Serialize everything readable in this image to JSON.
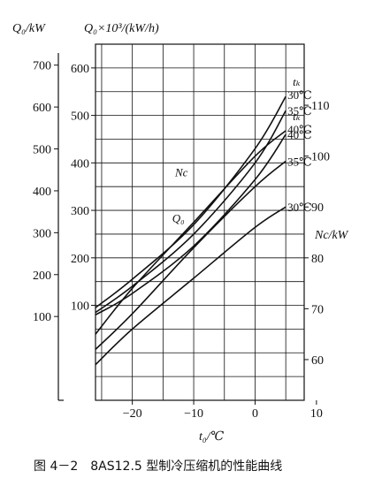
{
  "chart_data": {
    "type": "line",
    "caption": "图 4－2　8AS12.5 型制冷压缩机的性能曲线",
    "x_axis": {
      "label": "t₀/℃",
      "range": [
        -26,
        8
      ],
      "ticks": [
        -20,
        -10,
        0,
        10
      ],
      "tick_labels": [
        "−20",
        "−10",
        "0",
        "10"
      ]
    },
    "y_axes": {
      "outer": {
        "label": "Q₀/kW",
        "ticks": [
          100,
          200,
          300,
          400,
          500,
          600,
          700
        ],
        "range": [
          -100,
          750
        ]
      },
      "left": {
        "label": "Q₀×10³/(kW/h)",
        "ticks": [
          100,
          200,
          300,
          400,
          500,
          600
        ],
        "range": [
          -100,
          650
        ]
      },
      "right": {
        "label": "Nc/kW",
        "ticks": [
          60,
          70,
          80,
          90,
          100,
          110
        ],
        "range": [
          52,
          122
        ]
      }
    },
    "grid": true,
    "groups": [
      {
        "name": "Q₀",
        "condensing_label": "tₖ",
        "axis": "left",
        "series": [
          {
            "name": "30℃",
            "x": [
              -26,
              -20,
              -10,
              0,
              5
            ],
            "y": [
              95,
              155,
              270,
              430,
              540
            ]
          },
          {
            "name": "35℃",
            "x": [
              -26,
              -20,
              -10,
              0,
              5
            ],
            "y": [
              85,
              140,
              250,
              400,
              510
            ]
          },
          {
            "name": "40℃",
            "x": [
              -26,
              -20,
              -10,
              0,
              5
            ],
            "y": [
              80,
              125,
              225,
              365,
              460
            ]
          }
        ]
      },
      {
        "name": "Nc",
        "condensing_label": "tₖ",
        "axis": "right",
        "series": [
          {
            "name": "40℃",
            "x": [
              -26,
              -20,
              -10,
              0,
              5
            ],
            "y": [
              65,
              74,
              87,
              100,
              105
            ]
          },
          {
            "name": "35℃",
            "x": [
              -26,
              -20,
              -10,
              0,
              5
            ],
            "y": [
              62,
              69,
              82,
              94,
              99
            ]
          },
          {
            "name": "30℃",
            "x": [
              -26,
              -20,
              -10,
              0,
              5
            ],
            "y": [
              59,
              66,
              76,
              86,
              90
            ]
          }
        ]
      }
    ]
  }
}
